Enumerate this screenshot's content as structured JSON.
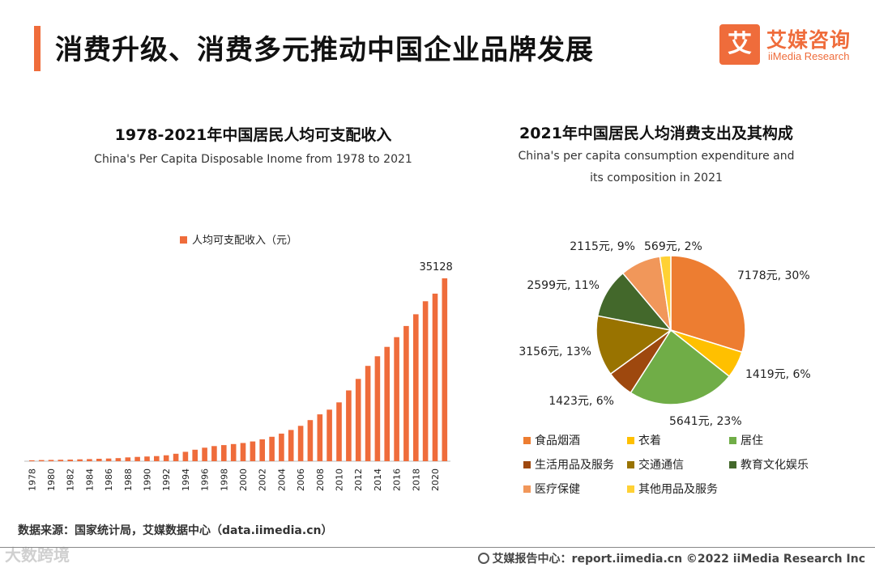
{
  "header": {
    "title": "消费升级、消费多元推动中国企业品牌发展",
    "logo_mark": "艾",
    "logo_cn": "艾媒咨询",
    "logo_en": "iiMedia Research"
  },
  "left_chart": {
    "title_cn": "1978-2021年中国居民人均可支配收入",
    "title_en": "China's Per Capita Disposable Inome from 1978 to 2021"
  },
  "right_chart": {
    "title_cn": "2021年中国居民人均消费支出及其构成",
    "title_en_line1": "China's per capita consumption expenditure and",
    "title_en_line2": "its composition in 2021"
  },
  "chart_data": [
    {
      "type": "bar",
      "title": "1978-2021年中国居民人均可支配收入",
      "legend": "人均可支配收入（元）",
      "color": "#ef6c3b",
      "categories": [
        "1978",
        "1979",
        "1980",
        "1981",
        "1982",
        "1983",
        "1984",
        "1985",
        "1986",
        "1987",
        "1988",
        "1989",
        "1990",
        "1991",
        "1992",
        "1993",
        "1994",
        "1995",
        "1996",
        "1997",
        "1998",
        "1999",
        "2000",
        "2001",
        "2002",
        "2003",
        "2004",
        "2005",
        "2006",
        "2007",
        "2008",
        "2009",
        "2010",
        "2011",
        "2012",
        "2013",
        "2014",
        "2015",
        "2016",
        "2017",
        "2018",
        "2019",
        "2020",
        "2021"
      ],
      "tick_labels": [
        "1978",
        "1980",
        "1982",
        "1984",
        "1986",
        "1988",
        "1990",
        "1992",
        "1994",
        "1996",
        "1998",
        "2000",
        "2002",
        "2004",
        "2006",
        "2008",
        "2010",
        "2012",
        "2014",
        "2016",
        "2018",
        "2020"
      ],
      "values": [
        171,
        212,
        247,
        277,
        318,
        352,
        407,
        473,
        520,
        595,
        732,
        817,
        904,
        984,
        1130,
        1434,
        1800,
        2200,
        2600,
        2900,
        3100,
        3300,
        3500,
        3800,
        4200,
        4700,
        5300,
        6000,
        6800,
        7900,
        9000,
        9900,
        11300,
        13600,
        15800,
        18311,
        20167,
        21966,
        23821,
        25974,
        28228,
        30733,
        32189,
        35128
      ],
      "value_labels": [
        {
          "index": 43,
          "text": "35128"
        }
      ],
      "ylim": [
        0,
        36000
      ]
    },
    {
      "type": "pie",
      "title": "2021年中国居民人均消费支出及其构成",
      "slices": [
        {
          "name": "食品烟酒",
          "value": 7178,
          "label": "7178元, 30%",
          "color": "#ed7d31"
        },
        {
          "name": "衣着",
          "value": 1419,
          "label": "1419元, 6%",
          "color": "#ffc000"
        },
        {
          "name": "居住",
          "value": 5641,
          "label": "5641元, 23%",
          "color": "#70ad47"
        },
        {
          "name": "生活用品及服务",
          "value": 1423,
          "label": "1423元, 6%",
          "color": "#9e480e"
        },
        {
          "name": "交通通信",
          "value": 3156,
          "label": "3156元, 13%",
          "color": "#997300"
        },
        {
          "name": "教育文化娱乐",
          "value": 2599,
          "label": "2599元, 11%",
          "color": "#43682b"
        },
        {
          "name": "医疗保健",
          "value": 2115,
          "label": "2115元, 9%",
          "color": "#f1975a"
        },
        {
          "name": "其他用品及服务",
          "value": 569,
          "label": "569元, 2%",
          "color": "#ffd134"
        }
      ]
    }
  ],
  "footer": {
    "source": "数据来源：国家统计局，艾媒数据中心（data.iimedia.cn）",
    "credit": "艾媒报告中心：report.iimedia.cn  ©2022  iiMedia Research  Inc",
    "watermark": "大数跨境"
  }
}
